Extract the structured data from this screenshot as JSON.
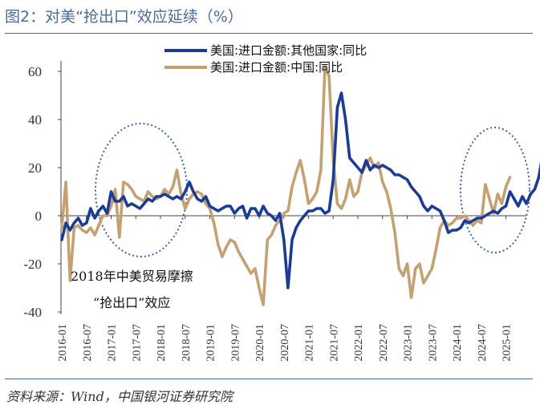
{
  "figure": {
    "title": "图2：对美“抢出口”效应延续（%）",
    "source": "资料来源：Wind，中国银河证券研究院"
  },
  "chart_data": {
    "type": "line",
    "ylim": [
      -40,
      60
    ],
    "yticks": [
      "60",
      "40",
      "20",
      "0",
      "-20",
      "-40"
    ],
    "xticklabels": [
      "2016-01",
      "2016-07",
      "2017-01",
      "2017-07",
      "2018-01",
      "2018-07",
      "2019-01",
      "2019-07",
      "2020-01",
      "2020-07",
      "2021-01",
      "2021-07",
      "2022-01",
      "2022-07",
      "2023-01",
      "2023-07",
      "2024-01",
      "2024-07",
      "2025-01"
    ],
    "legend_position": "top",
    "annotations": [
      "2018年中美贸易摩擦",
      "“抢出口”效应"
    ],
    "colors": {
      "series_0": "#1a3c96",
      "series_1": "#c4a173",
      "ellipse": "#3c64a0"
    },
    "series": [
      {
        "name": "美国:进口金额:其他国家:同比",
        "values": [
          -10,
          -3,
          -6,
          -3,
          -1,
          -4,
          -3,
          3,
          -1,
          2,
          4,
          1,
          10,
          6,
          6,
          8,
          4,
          5,
          4,
          3,
          5,
          7,
          6,
          8,
          8,
          9,
          8,
          7,
          8,
          7,
          10,
          14,
          10,
          7,
          6,
          8,
          4,
          3,
          2,
          3,
          4,
          4,
          1,
          3,
          4,
          -1,
          3,
          3,
          0,
          4,
          1,
          0,
          -2,
          1,
          -10,
          -30,
          -10,
          -5,
          -2,
          0,
          2,
          2,
          3,
          3,
          1,
          2,
          15,
          45,
          51,
          40,
          24,
          22,
          20,
          18,
          23,
          19,
          21,
          20,
          21,
          20,
          19,
          17,
          17,
          16,
          15,
          12,
          10,
          8,
          4,
          2,
          4,
          3,
          2,
          -2,
          -7,
          -6,
          -6,
          -5,
          -2,
          -3,
          -2,
          -1,
          -1,
          0,
          1,
          2,
          1,
          3,
          4,
          10,
          7,
          4,
          8,
          5,
          9,
          11,
          16,
          26
        ]
      },
      {
        "name": "美国:进口金额:中国:同比",
        "values": [
          -5,
          14,
          -27,
          -5,
          -4,
          -6,
          -7,
          -5,
          -8,
          -4,
          0,
          0,
          4,
          11,
          -9,
          14,
          13,
          11,
          8,
          7,
          6,
          10,
          8,
          7,
          8,
          11,
          9,
          12,
          19,
          9,
          3,
          7,
          9,
          10,
          9,
          5,
          3,
          -3,
          -12,
          -17,
          -13,
          -10,
          -11,
          -15,
          -18,
          -21,
          -24,
          -22,
          -30,
          -37,
          -10,
          -8,
          -4,
          -2,
          1,
          2,
          12,
          18,
          23,
          15,
          5,
          7,
          10,
          19,
          62,
          58,
          23,
          5,
          3,
          7,
          15,
          8,
          10,
          18,
          21,
          24,
          20,
          22,
          14,
          10,
          3,
          -7,
          -22,
          -25,
          -20,
          -34,
          -22,
          -20,
          -28,
          -25,
          -22,
          -14,
          -5,
          -2,
          -4,
          -3,
          -1,
          -1,
          0,
          -2,
          -4,
          -2,
          -3,
          13,
          7,
          1,
          9,
          5,
          12,
          16
        ]
      }
    ]
  }
}
